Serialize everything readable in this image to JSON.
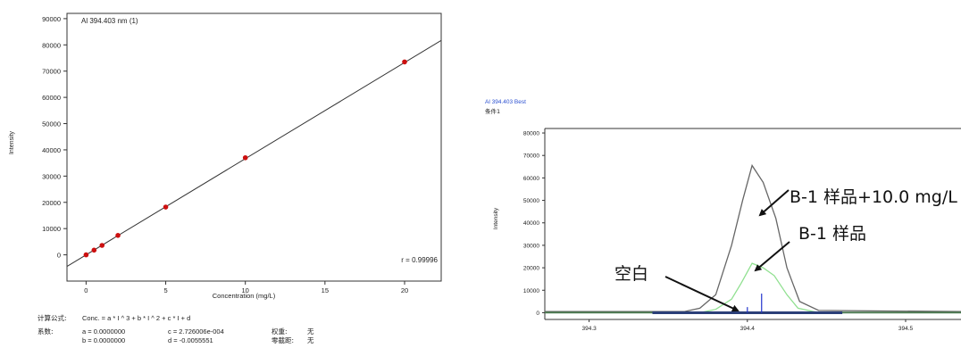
{
  "chart_data": [
    {
      "type": "scatter",
      "title": "Al 394.403 nm (1)",
      "xlabel": "Concentration (mg/L)",
      "ylabel": "Intensity",
      "xlim": [
        -1.2,
        22.3
      ],
      "ylim": [
        -10000,
        92000
      ],
      "xticks": [
        0,
        5,
        10,
        15,
        20
      ],
      "yticks": [
        0,
        10000,
        20000,
        30000,
        40000,
        50000,
        60000,
        70000,
        80000,
        90000
      ],
      "grid": false,
      "series": [
        {
          "x": [
            0,
            0.5,
            1,
            2,
            5,
            10,
            20
          ],
          "y": [
            0,
            1800,
            3600,
            7400,
            18200,
            37000,
            73500
          ]
        }
      ],
      "fit_line": {
        "x": [
          -1.2,
          22.3
        ],
        "y": [
          -4400,
          81700
        ]
      },
      "annotation": "r = 0.99996",
      "colors": {
        "point": "#cc1010",
        "line": "#333333"
      }
    },
    {
      "type": "line",
      "title": "Al 394.403 Best",
      "subtitle": "条件1",
      "ylabel": "Intensity",
      "xlim": [
        394.272,
        394.535
      ],
      "ylim": [
        -3000,
        82000
      ],
      "xticks": [
        394.3,
        394.4,
        394.5
      ],
      "yticks": [
        0,
        10000,
        20000,
        30000,
        40000,
        50000,
        60000,
        70000,
        80000
      ],
      "grid": false,
      "series": [
        {
          "color": "#666666",
          "x": [
            394.272,
            394.36,
            394.37,
            394.38,
            394.39,
            394.397,
            394.403,
            394.41,
            394.418,
            394.425,
            394.433,
            394.445,
            394.535
          ],
          "y": [
            500,
            500,
            2000,
            8000,
            30000,
            50000,
            65500,
            58000,
            42000,
            20000,
            5000,
            1000,
            500
          ]
        },
        {
          "color": "#90e090",
          "x": [
            394.272,
            394.37,
            394.38,
            394.39,
            394.396,
            394.403,
            394.41,
            394.417,
            394.425,
            394.432,
            394.445,
            394.535
          ],
          "y": [
            0,
            0,
            1500,
            6000,
            13000,
            22000,
            20000,
            16500,
            8000,
            2000,
            0,
            0
          ]
        },
        {
          "color": "#4d7a52",
          "x": [
            394.272,
            394.535
          ],
          "y": [
            100,
            100
          ]
        }
      ],
      "baseline_marker": {
        "x": [
          394.34,
          394.46
        ]
      },
      "sticks": [
        {
          "x": 394.4,
          "y": 2500
        },
        {
          "x": 394.409,
          "y": 8500
        }
      ],
      "annotations": [
        "B-1 样品+10.0 mg/L",
        "B-1 样品",
        "空白"
      ]
    }
  ],
  "formula": {
    "label": "计算公式:",
    "text": "Conc. = a * I ^ 3 + b * I ^ 2 + c * I + d"
  },
  "coefficients": {
    "label": "系数:",
    "a": "a = 0.0000000",
    "b": "b = 0.0000000",
    "c": "c = 2.726006e-004",
    "d": "d = -0.0055551",
    "weight_label": "权重:",
    "weight_value": "无",
    "zero_label": "零截距:",
    "zero_value": "无"
  }
}
